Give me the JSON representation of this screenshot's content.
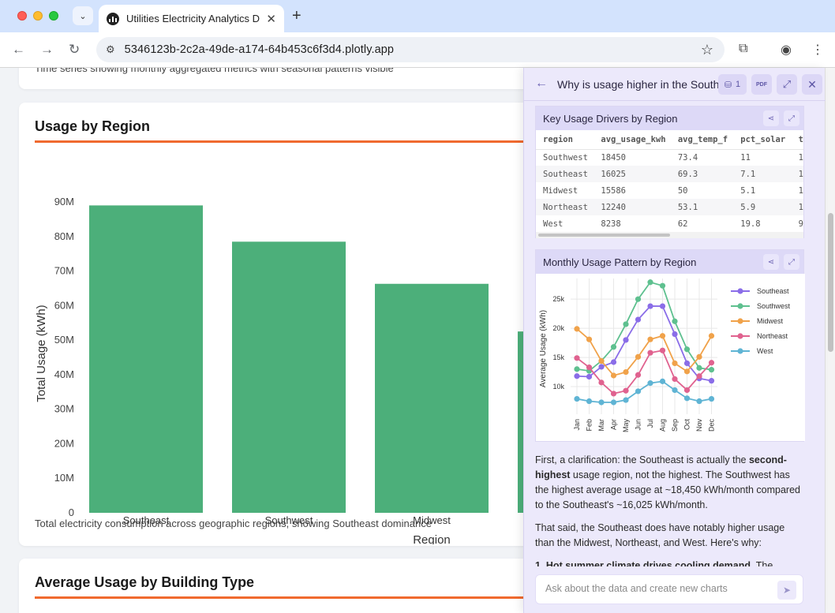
{
  "browser": {
    "tab_title": "Utilities Electricity Analytics D",
    "new_tab_label": "+",
    "url": "5346123b-2c2a-49de-a174-64b453c6f3d4.plotly.app"
  },
  "page": {
    "prev_card_desc": "Time series showing monthly aggregated metrics with seasonal patterns visible",
    "region_card": {
      "title": "Usage by Region",
      "description": "Total electricity consumption across geographic regions, showing Southeast dominance"
    },
    "building_card": {
      "title": "Average Usage by Building Type"
    }
  },
  "panel": {
    "title": "Why is usage higher in the South...",
    "data_count": "1",
    "pdf_label": "PDF",
    "table_block": {
      "title": "Key Usage Drivers by Region",
      "columns": [
        "region",
        "avg_usage_kwh",
        "avg_temp_f",
        "pct_solar",
        "t"
      ],
      "rows": [
        [
          "Southwest",
          "18450",
          "73.4",
          "11",
          "1"
        ],
        [
          "Southeast",
          "16025",
          "69.3",
          "7.1",
          "1"
        ],
        [
          "Midwest",
          "15586",
          "50",
          "5.1",
          "1"
        ],
        [
          "Northeast",
          "12240",
          "53.1",
          "5.9",
          "1"
        ],
        [
          "West",
          "8238",
          "62",
          "19.8",
          "9"
        ]
      ]
    },
    "chart_block": {
      "title": "Monthly Usage Pattern by Region"
    },
    "message": {
      "p1_a": "First, a clarification: the Southeast is actually the ",
      "p1_b": "second-highest",
      "p1_c": " usage region, not the highest. The Southwest has the highest average usage at ~18,450 kWh/month compared to the Southeast's ~16,025 kWh/month.",
      "p2": "That said, the Southeast does have notably higher usage than the Midwest, Northeast, and West. Here's why:",
      "p3_num": "1. ",
      "p3_bold": "Hot summer climate drives cooling demand",
      "p3_rest": ". The"
    },
    "input_placeholder": "Ask about the data and create new charts"
  },
  "colors": {
    "bar": "#4caf7a",
    "accent_rule": "#f06a2f",
    "panel_bg": "#ece9fb",
    "southeast": "#8a6de8",
    "southwest": "#5ec08f",
    "midwest": "#f0a24a",
    "northeast": "#e0628f",
    "west": "#5fb4d4"
  },
  "chart_data": [
    {
      "type": "bar",
      "title": "",
      "categories": [
        "Southeast",
        "Southwest",
        "Midwest",
        "Northeast"
      ],
      "values": [
        89000000,
        78500000,
        66300000,
        52500000
      ],
      "xlabel": "Region",
      "ylabel": "Total Usage (kWh)",
      "ylim": [
        0,
        90000000
      ],
      "yticks": [
        "0",
        "10M",
        "20M",
        "30M",
        "40M",
        "50M",
        "60M",
        "70M",
        "80M",
        "90M"
      ],
      "grid": false
    },
    {
      "type": "line",
      "title": "",
      "categories": [
        "Jan",
        "Feb",
        "Mar",
        "Apr",
        "May",
        "Jun",
        "Jul",
        "Aug",
        "Sep",
        "Oct",
        "Nov",
        "Dec"
      ],
      "ylabel": "Average Usage (kWh)",
      "ylim": [
        5000,
        28000
      ],
      "yticks": [
        "10k",
        "15k",
        "20k",
        "25k"
      ],
      "legend": "right",
      "grid": true,
      "series": [
        {
          "name": "Southeast",
          "values": [
            11800,
            11700,
            13400,
            14200,
            18000,
            21500,
            23800,
            23800,
            19000,
            14000,
            11400,
            11000
          ]
        },
        {
          "name": "Southwest",
          "values": [
            13000,
            12700,
            14400,
            16800,
            20700,
            25000,
            27900,
            27300,
            21200,
            16400,
            13200,
            12900
          ]
        },
        {
          "name": "Midwest",
          "values": [
            19900,
            18100,
            14400,
            11900,
            12500,
            15100,
            18100,
            18700,
            14000,
            12600,
            15100,
            18700
          ]
        },
        {
          "name": "Northeast",
          "values": [
            14900,
            13300,
            10700,
            8800,
            9300,
            12000,
            15800,
            16200,
            11300,
            9400,
            11800,
            14100
          ]
        },
        {
          "name": "West",
          "values": [
            7900,
            7500,
            7300,
            7300,
            7700,
            9200,
            10600,
            10900,
            9400,
            8000,
            7500,
            7900
          ]
        }
      ]
    }
  ]
}
